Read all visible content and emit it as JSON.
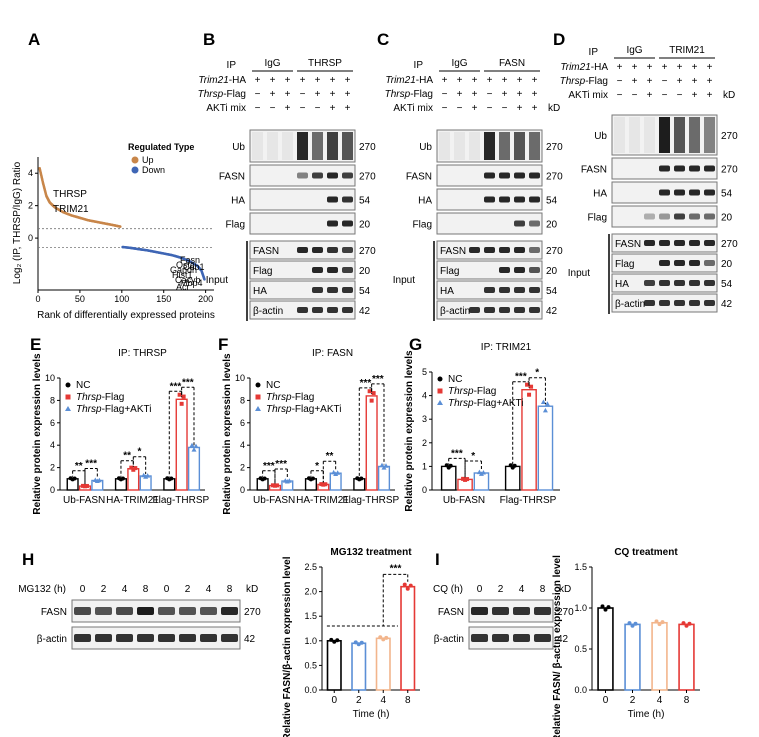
{
  "panel_letters": [
    "A",
    "B",
    "C",
    "D",
    "E",
    "F",
    "G",
    "H",
    "I"
  ],
  "blot_B": {
    "ip_label": "IP",
    "ip_groups": [
      "IgG",
      "THRSP"
    ],
    "row_labels": [
      "Trim21-HA",
      "Thrsp-Flag",
      "AKTi mix"
    ],
    "row_signs": [
      [
        "+",
        "+",
        "+",
        "+",
        "+",
        "+",
        "+"
      ],
      [
        "−",
        "+",
        "+",
        "−",
        "+",
        "+",
        "+"
      ],
      [
        "−",
        "−",
        "+",
        "−",
        "−",
        "+",
        "+"
      ]
    ],
    "ip_bands": [
      {
        "label": "Ub",
        "kd": "270"
      },
      {
        "label": "FASN",
        "kd": "270"
      },
      {
        "label": "HA",
        "kd": "54"
      },
      {
        "label": "Flag",
        "kd": "20"
      }
    ],
    "input_label": "Input",
    "input_bands": [
      {
        "label": "FASN",
        "kd": "270"
      },
      {
        "label": "Flag",
        "kd": "20"
      },
      {
        "label": "HA",
        "kd": "54"
      },
      {
        "label": "β-actin",
        "kd": "42"
      }
    ]
  },
  "blot_C": {
    "ip_label": "IP",
    "ip_groups": [
      "IgG",
      "FASN"
    ],
    "row_labels": [
      "Trim21-HA",
      "Thrsp-Flag",
      "AKTi mix"
    ],
    "row_signs": [
      [
        "+",
        "+",
        "+",
        "+",
        "+",
        "+",
        "+"
      ],
      [
        "−",
        "+",
        "+",
        "−",
        "+",
        "+",
        "+"
      ],
      [
        "−",
        "−",
        "+",
        "−",
        "−",
        "+",
        "+"
      ]
    ],
    "kd_unit": "kD",
    "ip_bands": [
      {
        "label": "Ub",
        "kd": "270"
      },
      {
        "label": "FASN",
        "kd": "270"
      },
      {
        "label": "HA",
        "kd": "54"
      },
      {
        "label": "Flag",
        "kd": "20"
      }
    ],
    "input_label": "Input",
    "input_bands": [
      {
        "label": "FASN",
        "kd": "270"
      },
      {
        "label": "Flag",
        "kd": "20"
      },
      {
        "label": "HA",
        "kd": "54"
      },
      {
        "label": "β-actin",
        "kd": "42"
      }
    ]
  },
  "blot_D": {
    "ip_label": "IP",
    "ip_groups": [
      "IgG",
      "TRIM21"
    ],
    "row_labels": [
      "Trim21-HA",
      "Thrsp-Flag",
      "AKTi mix"
    ],
    "row_signs": [
      [
        "+",
        "+",
        "+",
        "+",
        "+",
        "+",
        "+"
      ],
      [
        "−",
        "+",
        "+",
        "−",
        "+",
        "+",
        "+"
      ],
      [
        "−",
        "−",
        "+",
        "−",
        "−",
        "+",
        "+"
      ]
    ],
    "kd_unit": "kD",
    "ip_bands": [
      {
        "label": "Ub",
        "kd": "270"
      },
      {
        "label": "FASN",
        "kd": "270"
      },
      {
        "label": "HA",
        "kd": "54"
      },
      {
        "label": "Flag",
        "kd": "20"
      }
    ],
    "input_label": "Input",
    "input_bands": [
      {
        "label": "FASN",
        "kd": "270"
      },
      {
        "label": "Flag",
        "kd": "20"
      },
      {
        "label": "HA",
        "kd": "54"
      },
      {
        "label": "β-actin",
        "kd": "42"
      }
    ]
  },
  "blot_H": {
    "treat_label": "MG132 (h)",
    "times": [
      "0",
      "2",
      "4",
      "8",
      "0",
      "2",
      "4",
      "8"
    ],
    "kd_unit": "kD",
    "bands": [
      {
        "label": "FASN",
        "kd": "270"
      },
      {
        "label": "β-actin",
        "kd": "42"
      }
    ]
  },
  "blot_I": {
    "treat_label": "CQ (h)",
    "times": [
      "0",
      "2",
      "4",
      "8"
    ],
    "kd_unit": "kD",
    "bands": [
      {
        "label": "FASN",
        "kd": "270"
      },
      {
        "label": "β-actin",
        "kd": "42"
      }
    ]
  },
  "chart_data": [
    {
      "id": "A",
      "type": "scatter",
      "xlabel": "Rank of differentially expressed proteins",
      "ylabel": "Log₂ (IP, THRSP/IgG) Ratio",
      "xticks": [
        "0",
        "50",
        "100",
        "150",
        "200"
      ],
      "yticks": [
        "0",
        "2",
        "4"
      ],
      "xlim": [
        0,
        210
      ],
      "ylim": [
        -3.2,
        5
      ],
      "legend_title": "Regulated Type",
      "series": [
        {
          "name": "Up",
          "color": "#c8864a",
          "x": [
            2,
            6,
            10,
            14,
            20,
            30,
            40,
            50,
            60,
            70,
            80,
            90,
            99
          ],
          "y": [
            4.3,
            3.4,
            2.6,
            2.2,
            1.9,
            1.6,
            1.4,
            1.25,
            1.1,
            1.0,
            0.9,
            0.8,
            0.7
          ]
        },
        {
          "name": "Down",
          "color": "#3f66b5",
          "x": [
            101,
            110,
            120,
            130,
            140,
            150,
            160,
            170,
            180,
            190,
            195,
            199
          ],
          "y": [
            -0.55,
            -0.6,
            -0.68,
            -0.75,
            -0.85,
            -0.95,
            -1.05,
            -1.2,
            -1.4,
            -1.7,
            -2.0,
            -2.6
          ]
        }
      ],
      "annotations": [
        "THRSP",
        "TRIM21"
      ],
      "small_labels": [
        "Fasn",
        "Ostc",
        "Cdb1",
        "Gapdh",
        "Hist1",
        "Cacyb",
        "Mbp4",
        "Acr"
      ],
      "threshold_lines": [
        0.58,
        -0.58
      ]
    },
    {
      "id": "E",
      "type": "bar",
      "title": "IP: THRSP",
      "ylabel": "Relative protein expression levels",
      "categories": [
        "Ub-FASN",
        "HA-TRIM21",
        "Flag-THRSP"
      ],
      "ylim": [
        0,
        10
      ],
      "yticks": [
        0,
        2,
        4,
        6,
        8,
        10
      ],
      "series": [
        {
          "name": "NC",
          "values": [
            1.0,
            1.0,
            1.0
          ],
          "color": "#000000"
        },
        {
          "name": "Thrsp-Flag",
          "values": [
            0.35,
            1.9,
            8.1
          ],
          "color": "#e53935"
        },
        {
          "name": "Thrsp-Flag+AKTi",
          "values": [
            0.85,
            1.25,
            3.8
          ],
          "color": "#5b8fd6"
        }
      ],
      "significance": [
        {
          "cat": 0,
          "from": 0,
          "to": 1,
          "label": "**"
        },
        {
          "cat": 0,
          "from": 1,
          "to": 2,
          "label": "***"
        },
        {
          "cat": 1,
          "from": 0,
          "to": 1,
          "label": "**"
        },
        {
          "cat": 1,
          "from": 1,
          "to": 2,
          "label": "*"
        },
        {
          "cat": 2,
          "from": 0,
          "to": 1,
          "label": "***"
        },
        {
          "cat": 2,
          "from": 1,
          "to": 2,
          "label": "***"
        }
      ]
    },
    {
      "id": "F",
      "type": "bar",
      "title": "IP: FASN",
      "ylabel": "Relative protein expression levels",
      "categories": [
        "Ub-FASN",
        "HA-TRIM21",
        "Flag-THRSP"
      ],
      "ylim": [
        0,
        10
      ],
      "yticks": [
        0,
        2,
        4,
        6,
        8,
        10
      ],
      "series": [
        {
          "name": "NC",
          "values": [
            1.0,
            1.0,
            1.0
          ],
          "color": "#000000"
        },
        {
          "name": "Thrsp-Flag",
          "values": [
            0.4,
            0.5,
            8.4
          ],
          "color": "#e53935"
        },
        {
          "name": "Thrsp-Flag+AKTi",
          "values": [
            0.8,
            1.5,
            2.1
          ],
          "color": "#5b8fd6"
        }
      ],
      "significance": [
        {
          "cat": 0,
          "from": 0,
          "to": 1,
          "label": "***"
        },
        {
          "cat": 0,
          "from": 1,
          "to": 2,
          "label": "***"
        },
        {
          "cat": 1,
          "from": 0,
          "to": 1,
          "label": "*"
        },
        {
          "cat": 1,
          "from": 1,
          "to": 2,
          "label": "**"
        },
        {
          "cat": 2,
          "from": 0,
          "to": 1,
          "label": "***"
        },
        {
          "cat": 2,
          "from": 1,
          "to": 2,
          "label": "***"
        }
      ]
    },
    {
      "id": "G",
      "type": "bar",
      "title": "IP: TRIM21",
      "ylabel": "Relative protein expression levels",
      "categories": [
        "Ub-FASN",
        "Flag-THRSP"
      ],
      "ylim": [
        0,
        5
      ],
      "yticks": [
        0,
        1,
        2,
        3,
        4,
        5
      ],
      "series": [
        {
          "name": "NC",
          "values": [
            1.0,
            1.0
          ],
          "color": "#000000"
        },
        {
          "name": "Thrsp-Flag",
          "values": [
            0.45,
            4.25
          ],
          "color": "#e53935"
        },
        {
          "name": "Thrsp-Flag+AKTi",
          "values": [
            0.72,
            3.55
          ],
          "color": "#5b8fd6"
        }
      ],
      "significance": [
        {
          "cat": 0,
          "from": 0,
          "to": 1,
          "label": "***"
        },
        {
          "cat": 0,
          "from": 1,
          "to": 2,
          "label": "*"
        },
        {
          "cat": 1,
          "from": 0,
          "to": 1,
          "label": "***"
        },
        {
          "cat": 1,
          "from": 1,
          "to": 2,
          "label": "*"
        }
      ]
    },
    {
      "id": "H",
      "type": "bar",
      "title": "MG132 treatment",
      "xlabel": "Time (h)",
      "ylabel": "Relative FASN/β-actin expression level",
      "categories": [
        "0",
        "2",
        "4",
        "8"
      ],
      "values": [
        1.0,
        0.95,
        1.05,
        2.1
      ],
      "colors": [
        "#000000",
        "#5b8fd6",
        "#f2b58c",
        "#e53935"
      ],
      "ylim": [
        0,
        2.5
      ],
      "yticks": [
        "0.0",
        "0.5",
        "1.0",
        "1.5",
        "2.0",
        "2.5"
      ],
      "significance": [
        {
          "label": "***"
        }
      ]
    },
    {
      "id": "I",
      "type": "bar",
      "title": "CQ treatment",
      "xlabel": "Time (h)",
      "ylabel": "Relative FASN/ β-actin expression level",
      "categories": [
        "0",
        "2",
        "4",
        "8"
      ],
      "values": [
        1.0,
        0.8,
        0.82,
        0.8
      ],
      "colors": [
        "#000000",
        "#5b8fd6",
        "#f2b58c",
        "#e53935"
      ],
      "ylim": [
        0,
        1.5
      ],
      "yticks": [
        "0.0",
        "0.5",
        "1.0",
        "1.5"
      ]
    }
  ]
}
